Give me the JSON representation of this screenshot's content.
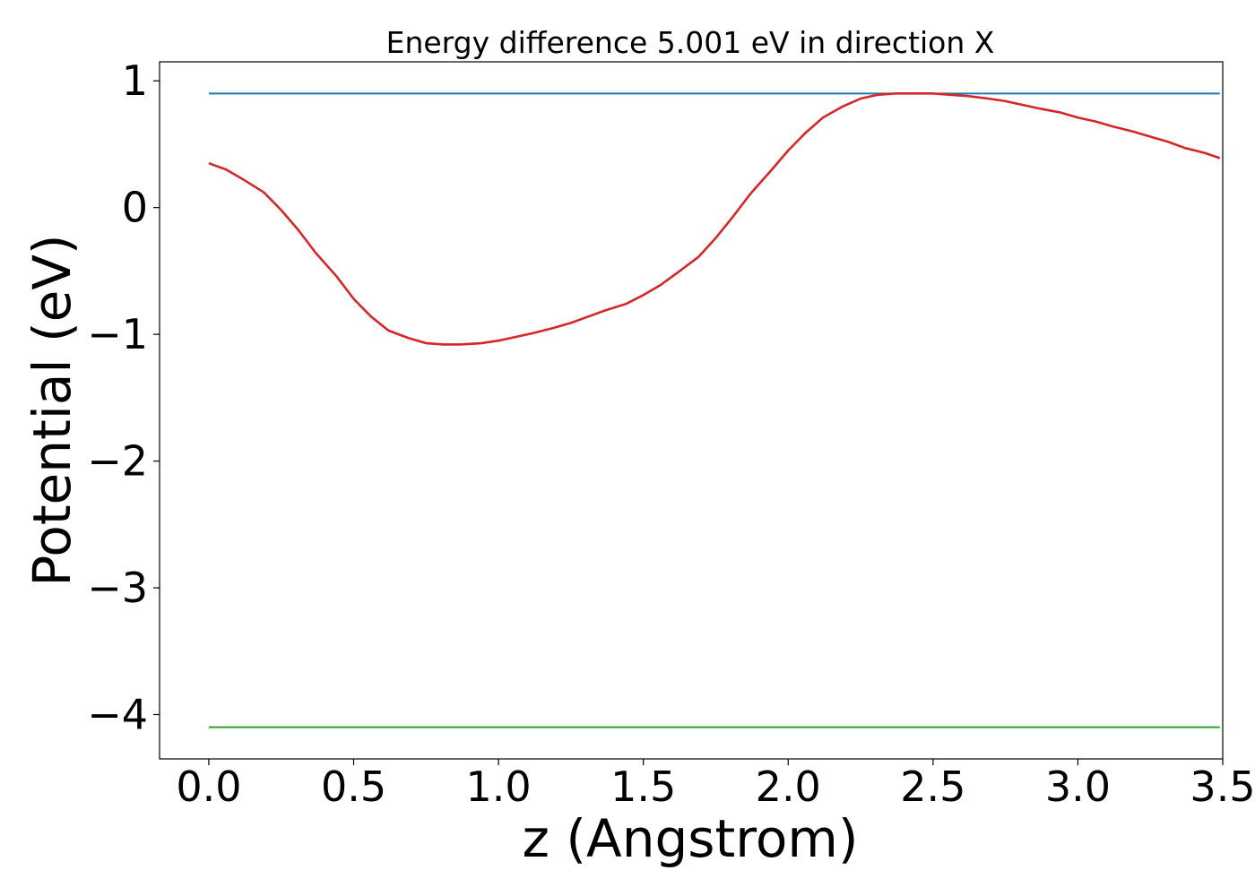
{
  "chart_data": {
    "type": "line",
    "title": "Energy difference 5.001 eV in direction X",
    "xlabel": "z (Angstrom)",
    "ylabel": "Potential (eV)",
    "xlim": [
      -0.17,
      3.5
    ],
    "ylim": [
      -4.35,
      1.15
    ],
    "xticks": [
      0.0,
      0.5,
      1.0,
      1.5,
      2.0,
      2.5,
      3.0,
      3.5
    ],
    "xtick_labels": [
      "0.0",
      "0.5",
      "1.0",
      "1.5",
      "2.0",
      "2.5",
      "3.0",
      "3.5"
    ],
    "yticks": [
      1,
      0,
      -1,
      -2,
      -3,
      -4
    ],
    "ytick_labels": [
      "1",
      "0",
      "−1",
      "−2",
      "−3",
      "−4"
    ],
    "grid": false,
    "series": [
      {
        "color": "#1f77b4",
        "x": [
          0.0,
          3.49
        ],
        "y": [
          0.9,
          0.9
        ]
      },
      {
        "color": "#2ca02c",
        "x": [
          0.0,
          3.49
        ],
        "y": [
          -4.1,
          -4.1
        ]
      },
      {
        "color": "#d62728",
        "x": [
          0.0,
          0.06,
          0.12,
          0.19,
          0.25,
          0.31,
          0.37,
          0.44,
          0.5,
          0.56,
          0.62,
          0.69,
          0.75,
          0.81,
          0.87,
          0.94,
          1.0,
          1.06,
          1.12,
          1.19,
          1.25,
          1.31,
          1.37,
          1.44,
          1.5,
          1.56,
          1.62,
          1.69,
          1.75,
          1.81,
          1.87,
          1.94,
          2.0,
          2.06,
          2.12,
          2.19,
          2.25,
          2.31,
          2.37,
          2.44,
          2.5,
          2.56,
          2.62,
          2.69,
          2.75,
          2.81,
          2.87,
          2.94,
          3.0,
          3.06,
          3.12,
          3.19,
          3.25,
          3.31,
          3.37,
          3.44,
          3.49
        ],
        "y": [
          0.35,
          0.3,
          0.22,
          0.12,
          -0.02,
          -0.18,
          -0.36,
          -0.54,
          -0.72,
          -0.86,
          -0.97,
          -1.03,
          -1.07,
          -1.08,
          -1.08,
          -1.07,
          -1.05,
          -1.02,
          -0.99,
          -0.95,
          -0.91,
          -0.86,
          -0.81,
          -0.76,
          -0.69,
          -0.61,
          -0.51,
          -0.39,
          -0.24,
          -0.07,
          0.11,
          0.29,
          0.45,
          0.59,
          0.71,
          0.8,
          0.86,
          0.89,
          0.9,
          0.9,
          0.9,
          0.89,
          0.88,
          0.86,
          0.84,
          0.81,
          0.78,
          0.75,
          0.71,
          0.68,
          0.64,
          0.6,
          0.56,
          0.52,
          0.47,
          0.43,
          0.39
        ]
      }
    ]
  }
}
